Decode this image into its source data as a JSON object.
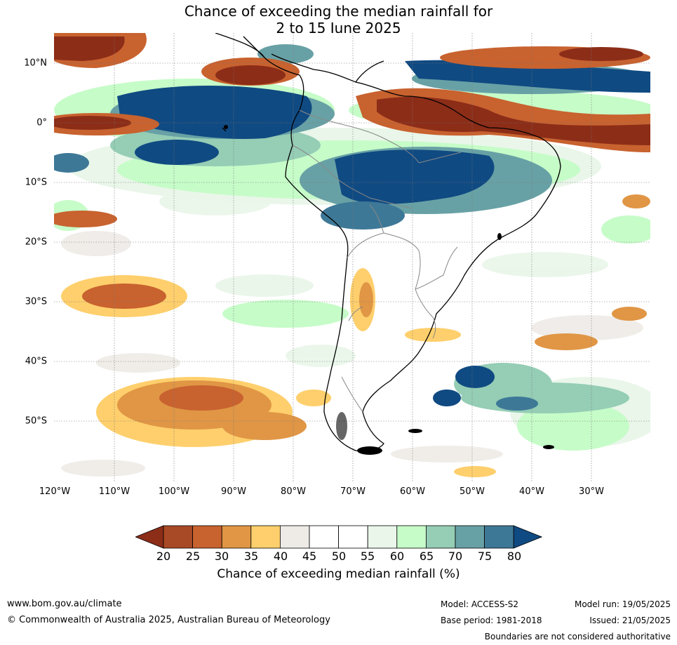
{
  "title": {
    "line1": "Chance of exceeding the median rainfall for",
    "line2": "2 to 15 June 2025"
  },
  "map": {
    "lat_labels": [
      "10°N",
      "0°",
      "10°S",
      "20°S",
      "30°S",
      "40°S",
      "50°S"
    ],
    "lon_labels": [
      "120°W",
      "110°W",
      "100°W",
      "90°W",
      "80°W",
      "70°W",
      "60°W",
      "50°W",
      "40°W",
      "30°W"
    ],
    "colors": {
      "c20": "#8c2d18",
      "c25": "#a94a26",
      "c30": "#c8622f",
      "c35": "#e09645",
      "c40": "#fecf6c",
      "c45": "#eeebe7",
      "c50": "#ffffff",
      "c55": "#ffffff",
      "c60": "#e9f6e9",
      "c65": "#c6fcc8",
      "c70": "#95cdb5",
      "c75": "#68a1a5",
      "c80": "#3e7897",
      "c85": "#104a82"
    }
  },
  "colorbar": {
    "ticks": [
      "20",
      "25",
      "30",
      "35",
      "40",
      "45",
      "50",
      "55",
      "60",
      "65",
      "70",
      "75",
      "80"
    ],
    "label": "Chance of exceeding median rainfall (%)",
    "colors": [
      "#8c2d18",
      "#a94a26",
      "#c8622f",
      "#e09645",
      "#fecf6c",
      "#eeebe7",
      "#ffffff",
      "#ffffff",
      "#e9f6e9",
      "#c6fcc8",
      "#95cdb5",
      "#68a1a5",
      "#3e7897",
      "#104a82"
    ]
  },
  "footer": {
    "website": "www.bom.gov.au/climate",
    "copyright": "© Commonwealth of Australia 2025, Australian Bureau of Meteorology",
    "model": "Model: ACCESS-S2",
    "base_period": "Base period: 1981-2018",
    "model_run": "Model run: 19/05/2025",
    "issued": "Issued: 21/05/2025",
    "disclaimer": "Boundaries are not considered authoritative"
  }
}
